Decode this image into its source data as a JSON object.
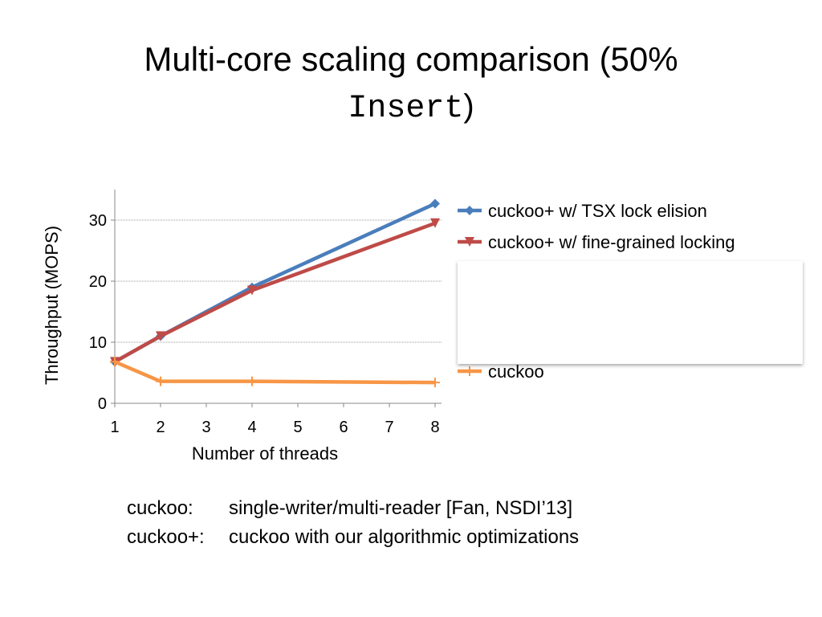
{
  "slide": {
    "title": "Multi-core scaling comparison (50%",
    "title_code": "Insert",
    "title_end": ")",
    "notes": [
      [
        "cuckoo:",
        "single-writer/multi-reader [Fan, NSDI’13]"
      ],
      [
        "cuckoo+:",
        "cuckoo with our algorithmic optimizations"
      ]
    ]
  },
  "chart_data": {
    "type": "line",
    "x_label": "Number of threads",
    "y_label": "Throughput (MOPS)",
    "xlim": [
      1,
      8
    ],
    "xticks": [
      1,
      2,
      3,
      4,
      5,
      6,
      7,
      8
    ],
    "ylim": [
      0,
      35
    ],
    "yticks": [
      0,
      10,
      20,
      30
    ],
    "grid": true,
    "x": [
      1,
      2,
      4,
      8
    ],
    "series": [
      {
        "name": "cuckoo+ w/ TSX lock elision",
        "color": "#4a7ebb",
        "marker": "diamond",
        "values": [
          6.8,
          11,
          19,
          32.7
        ]
      },
      {
        "name": "cuckoo+ w/ fine-grained locking",
        "color": "#be4b48",
        "marker": "triangle-down",
        "values": [
          6.8,
          11,
          18.5,
          29.5
        ]
      },
      {
        "name": "cuckoo",
        "color": "#f79646",
        "marker": "plus",
        "values": [
          6.8,
          3.6,
          3.6,
          3.4
        ]
      }
    ]
  }
}
